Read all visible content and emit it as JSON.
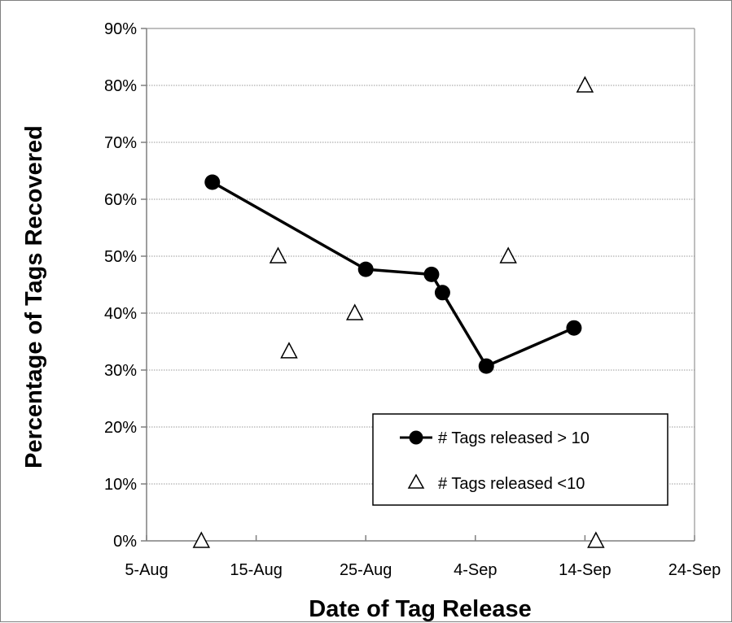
{
  "chart_data": {
    "type": "line",
    "title": "",
    "xlabel": "Date of Tag Release",
    "ylabel": "Percentage of Tags Recovered",
    "xlim": [
      "2023-08-05",
      "2023-09-24"
    ],
    "ylim": [
      0,
      0.9
    ],
    "x_ticks": [
      "5-Aug",
      "15-Aug",
      "25-Aug",
      "4-Sep",
      "14-Sep",
      "24-Sep"
    ],
    "y_ticks": [
      "0%",
      "10%",
      "20%",
      "30%",
      "40%",
      "50%",
      "60%",
      "70%",
      "80%",
      "90%"
    ],
    "grid": "horizontal",
    "legend_position": "bottom-right",
    "series": [
      {
        "name": "# Tags released > 10",
        "style": "line-with-filled-circles",
        "color": "#000000",
        "x": [
          "2023-08-11",
          "2023-08-25",
          "2023-08-31",
          "2023-09-01",
          "2023-09-05",
          "2023-09-13"
        ],
        "y": [
          0.63,
          0.477,
          0.468,
          0.436,
          0.307,
          0.374
        ]
      },
      {
        "name": "# Tags released <10",
        "style": "open-triangle-markers",
        "color": "#000000",
        "x": [
          "2023-08-10",
          "2023-08-17",
          "2023-08-18",
          "2023-08-24",
          "2023-09-07",
          "2023-09-14",
          "2023-09-15"
        ],
        "y": [
          0.0,
          0.5,
          0.333,
          0.4,
          0.5,
          0.8,
          0.0
        ]
      }
    ]
  }
}
